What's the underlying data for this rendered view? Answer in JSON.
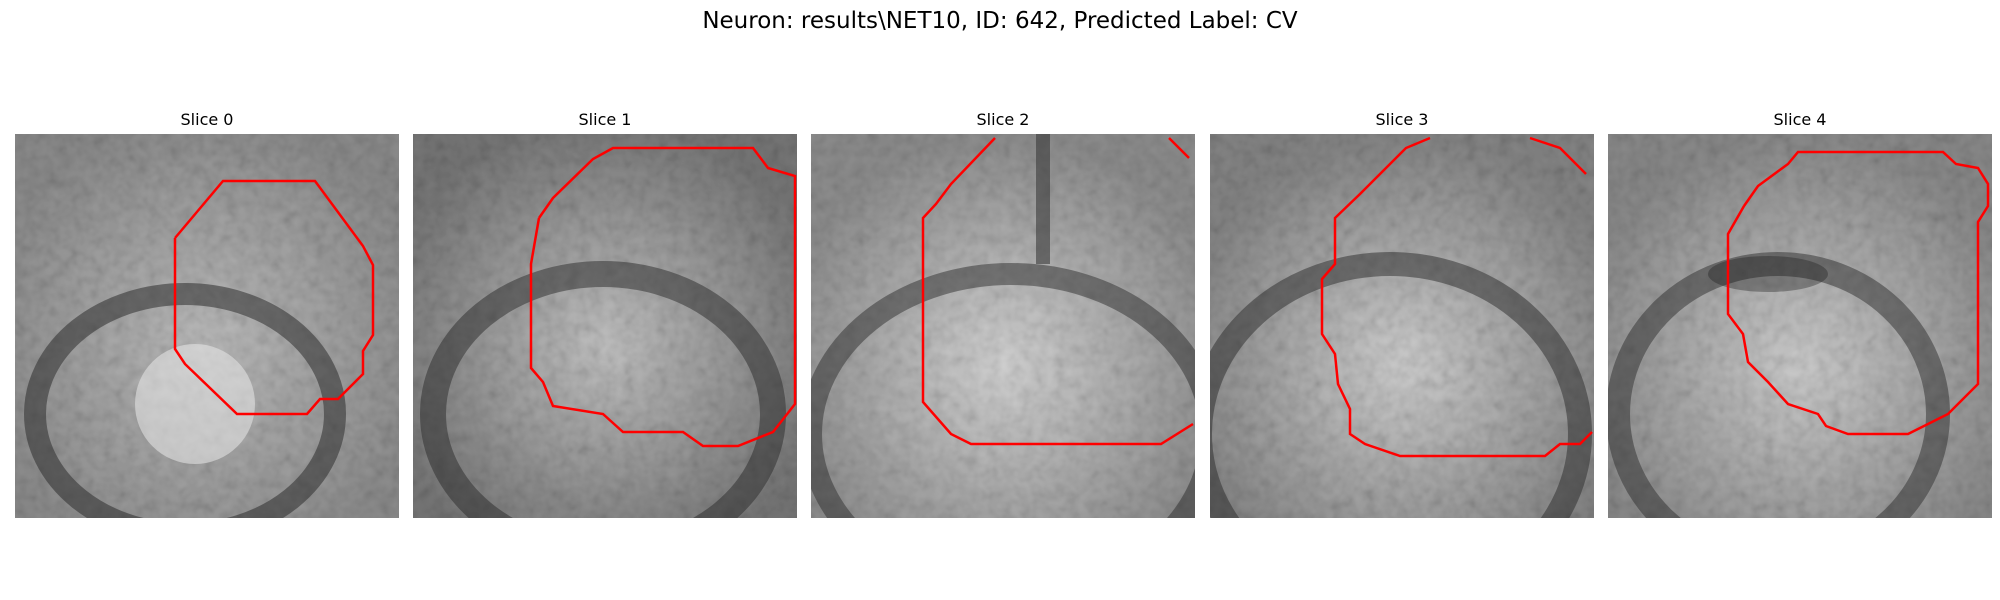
{
  "figure": {
    "title": "Neuron: results\\NET10, ID: 642, Predicted Label: CV"
  },
  "slices": [
    {
      "title": "Slice 0",
      "contour_color": "#ff0000"
    },
    {
      "title": "Slice 1",
      "contour_color": "#ff0000"
    },
    {
      "title": "Slice 2",
      "contour_color": "#ff0000"
    },
    {
      "title": "Slice 3",
      "contour_color": "#ff0000"
    },
    {
      "title": "Slice 4",
      "contour_color": "#ff0000"
    }
  ]
}
